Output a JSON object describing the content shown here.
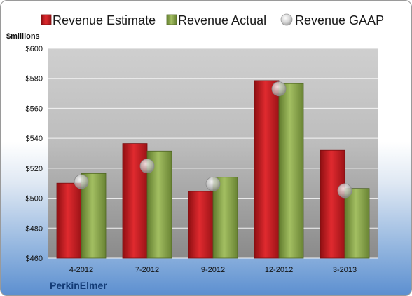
{
  "chart_data": {
    "type": "bar",
    "company": "PerkinElmer",
    "unit_label": "$millions",
    "categories": [
      "4-2012",
      "7-2012",
      "9-2012",
      "12-2012",
      "3-2013"
    ],
    "series": [
      {
        "name": "Revenue Estimate",
        "kind": "bar",
        "color": "#cc1f24",
        "values": [
          510,
          536.5,
          504.5,
          578.5,
          532
        ]
      },
      {
        "name": "Revenue Actual",
        "kind": "bar",
        "color": "#8aa84a",
        "values": [
          516.5,
          531.5,
          514,
          576.5,
          506.5
        ]
      },
      {
        "name": "Revenue GAAP",
        "kind": "marker",
        "color": "#c8c8c8",
        "values": [
          511,
          521.5,
          509.5,
          573,
          505
        ]
      }
    ],
    "y_ticks": [
      "$460",
      "$480",
      "$500",
      "$520",
      "$540",
      "$560",
      "$580",
      "$600"
    ],
    "ylim": [
      460,
      600
    ],
    "grid": true,
    "legend": "top"
  }
}
